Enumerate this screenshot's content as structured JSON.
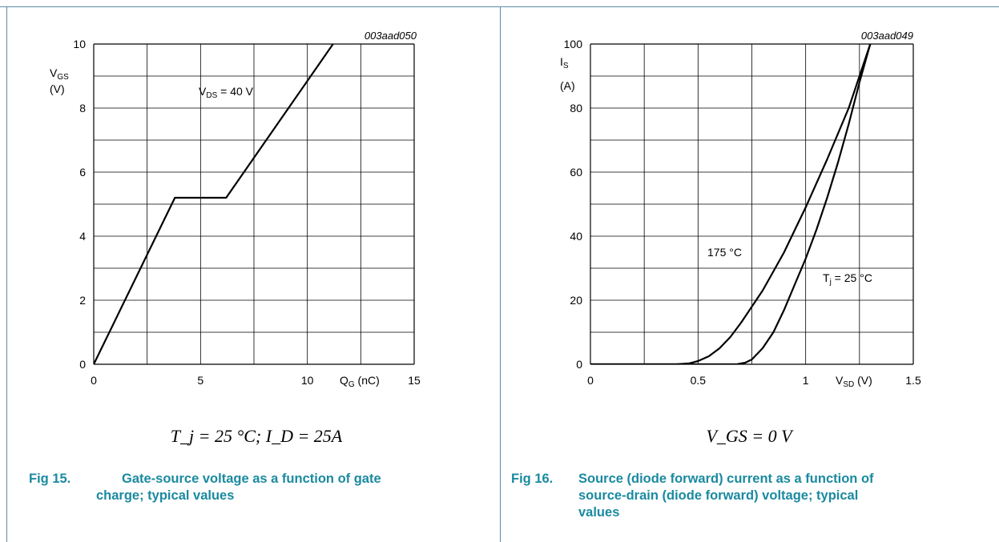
{
  "figures": [
    {
      "id": "fig15",
      "code": "003aad050",
      "ylabel_main": "V",
      "ylabel_sub": "GS",
      "ylabel_unit": "(V)",
      "xlabel_main": "Q",
      "xlabel_sub": "G",
      "xlabel_unit": " (nC)",
      "annotation_main": "V",
      "annotation_sub": "DS",
      "annotation_rest": " = 40 V",
      "condition": "T_j = 25 °C; I_D = 25A",
      "caption_number": "Fig 15.",
      "caption_line1": "Gate-source voltage as a function of gate",
      "caption_line2": "charge; typical values"
    },
    {
      "id": "fig16",
      "code": "003aad049",
      "ylabel_main": "I",
      "ylabel_sub": "S",
      "ylabel_unit": "(A)",
      "xlabel_main": "V",
      "xlabel_sub": "SD",
      "xlabel_unit": " (V)",
      "label_175": "175 °C",
      "label_tj_main": "T",
      "label_tj_sub": "j",
      "label_tj_rest": " = 25 °C",
      "condition": "V_GS = 0 V",
      "caption_number": "Fig 16.",
      "caption_line1": "Source (diode forward) current as a function of",
      "caption_line2": "source-drain (diode forward) voltage; typical",
      "caption_line3": "values"
    }
  ],
  "chart_data": [
    {
      "type": "line",
      "xlim": [
        0,
        15
      ],
      "ylim": [
        0,
        10
      ],
      "xticks": [
        "0",
        "5",
        "10",
        "15"
      ],
      "yticks": [
        "0",
        "2",
        "4",
        "6",
        "8",
        "10"
      ],
      "grid": true,
      "series": [
        {
          "name": "V_DS = 40 V",
          "x": [
            0,
            3.8,
            6.2,
            11.2
          ],
          "y": [
            0,
            5.2,
            5.2,
            10
          ]
        }
      ]
    },
    {
      "type": "line",
      "xlim": [
        0,
        1.5
      ],
      "ylim": [
        0,
        100
      ],
      "xticks": [
        "0",
        "0.5",
        "1",
        "1.5"
      ],
      "yticks": [
        "0",
        "20",
        "40",
        "60",
        "80",
        "100"
      ],
      "grid": true,
      "series": [
        {
          "name": "175 °C",
          "x": [
            0,
            0.4,
            0.46,
            0.5,
            0.55,
            0.6,
            0.65,
            0.7,
            0.75,
            0.8,
            0.85,
            0.9,
            0.95,
            1.0,
            1.1,
            1.2,
            1.3
          ],
          "y": [
            0,
            0,
            0.3,
            1,
            2.5,
            5,
            8.5,
            13,
            18,
            23,
            29,
            35,
            42,
            49,
            64,
            80,
            100
          ]
        },
        {
          "name": "T_j = 25 °C",
          "x": [
            0,
            0.68,
            0.72,
            0.75,
            0.8,
            0.85,
            0.9,
            0.95,
            1.0,
            1.05,
            1.1,
            1.15,
            1.2,
            1.25,
            1.3
          ],
          "y": [
            0,
            0,
            0.5,
            1.5,
            5,
            10,
            17,
            25,
            33,
            42,
            52,
            63,
            75,
            88,
            100
          ]
        }
      ]
    }
  ]
}
